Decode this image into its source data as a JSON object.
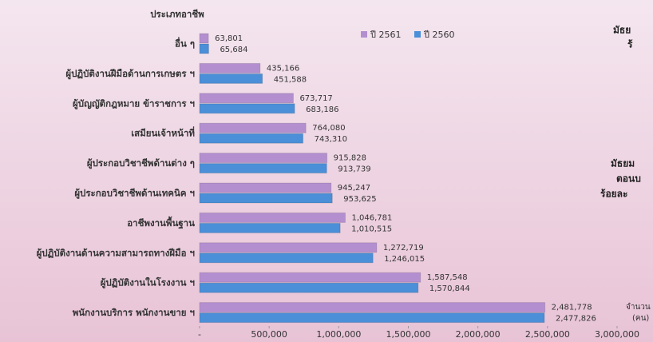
{
  "chart_data": {
    "type": "hbar",
    "y_axis_label": "ประเภทอาชีพ",
    "x_axis_label_lines": [
      "จำนวน",
      "(คน)"
    ],
    "annotations": [
      "มัธย",
      "ร้",
      "มัธยม",
      "ตอนบ",
      "ร้อยละ"
    ],
    "categories": [
      "อื่น ๆ",
      "ผู้ปฏิบัติงานฝีมือด้านการเกษตร ฯ",
      "ผู้บัญญัติกฎหมาย ข้าราชการ ฯ",
      "เสมียนเจ้าหน้าที่",
      "ผู้ประกอบวิชาชีพด้านต่าง ๆ",
      "ผู้ประกอบวิชาชีพด้านเทคนิค ฯ",
      "อาชีพงานพื้นฐาน",
      "ผู้ปฏิบัติงานด้านความสามารถทางฝีมือ ฯ",
      "ผู้ปฏิบัติงานในโรงงาน ฯ",
      "พนักงานบริการ พนักงานขาย ฯ"
    ],
    "series": [
      {
        "name": "ปี 2561",
        "color": "#b48fd0",
        "values": [
          63801,
          435166,
          673717,
          764080,
          915828,
          945247,
          1046781,
          1272719,
          1587548,
          2481778
        ],
        "value_labels": [
          "63,801",
          "435,166",
          "673,717",
          "764,080",
          "915,828",
          "945,247",
          "1,046,781",
          "1,272,719",
          "1,587,548",
          "2,481,778"
        ]
      },
      {
        "name": "ปี 2560",
        "color": "#4a8fd8",
        "values": [
          65684,
          451588,
          683186,
          743310,
          913739,
          953625,
          1010515,
          1246015,
          1570844,
          2477826
        ],
        "value_labels": [
          "65,684",
          "451,588",
          "683,186",
          "743,310",
          "913,739",
          "953,625",
          "1,010,515",
          "1,246,015",
          "1,570,844",
          "2,477,826"
        ]
      }
    ],
    "xlim": [
      0,
      3000000
    ],
    "xticks": [
      {
        "value": 0,
        "label": "-"
      },
      {
        "value": 500000,
        "label": "500,000"
      },
      {
        "value": 1000000,
        "label": "1,000,000"
      },
      {
        "value": 1500000,
        "label": "1,500,000"
      },
      {
        "value": 2000000,
        "label": "2,000,000"
      },
      {
        "value": 2500000,
        "label": "2,500,000"
      },
      {
        "value": 3000000,
        "label": "3,000,000"
      }
    ],
    "grid": false,
    "legend": "top"
  }
}
